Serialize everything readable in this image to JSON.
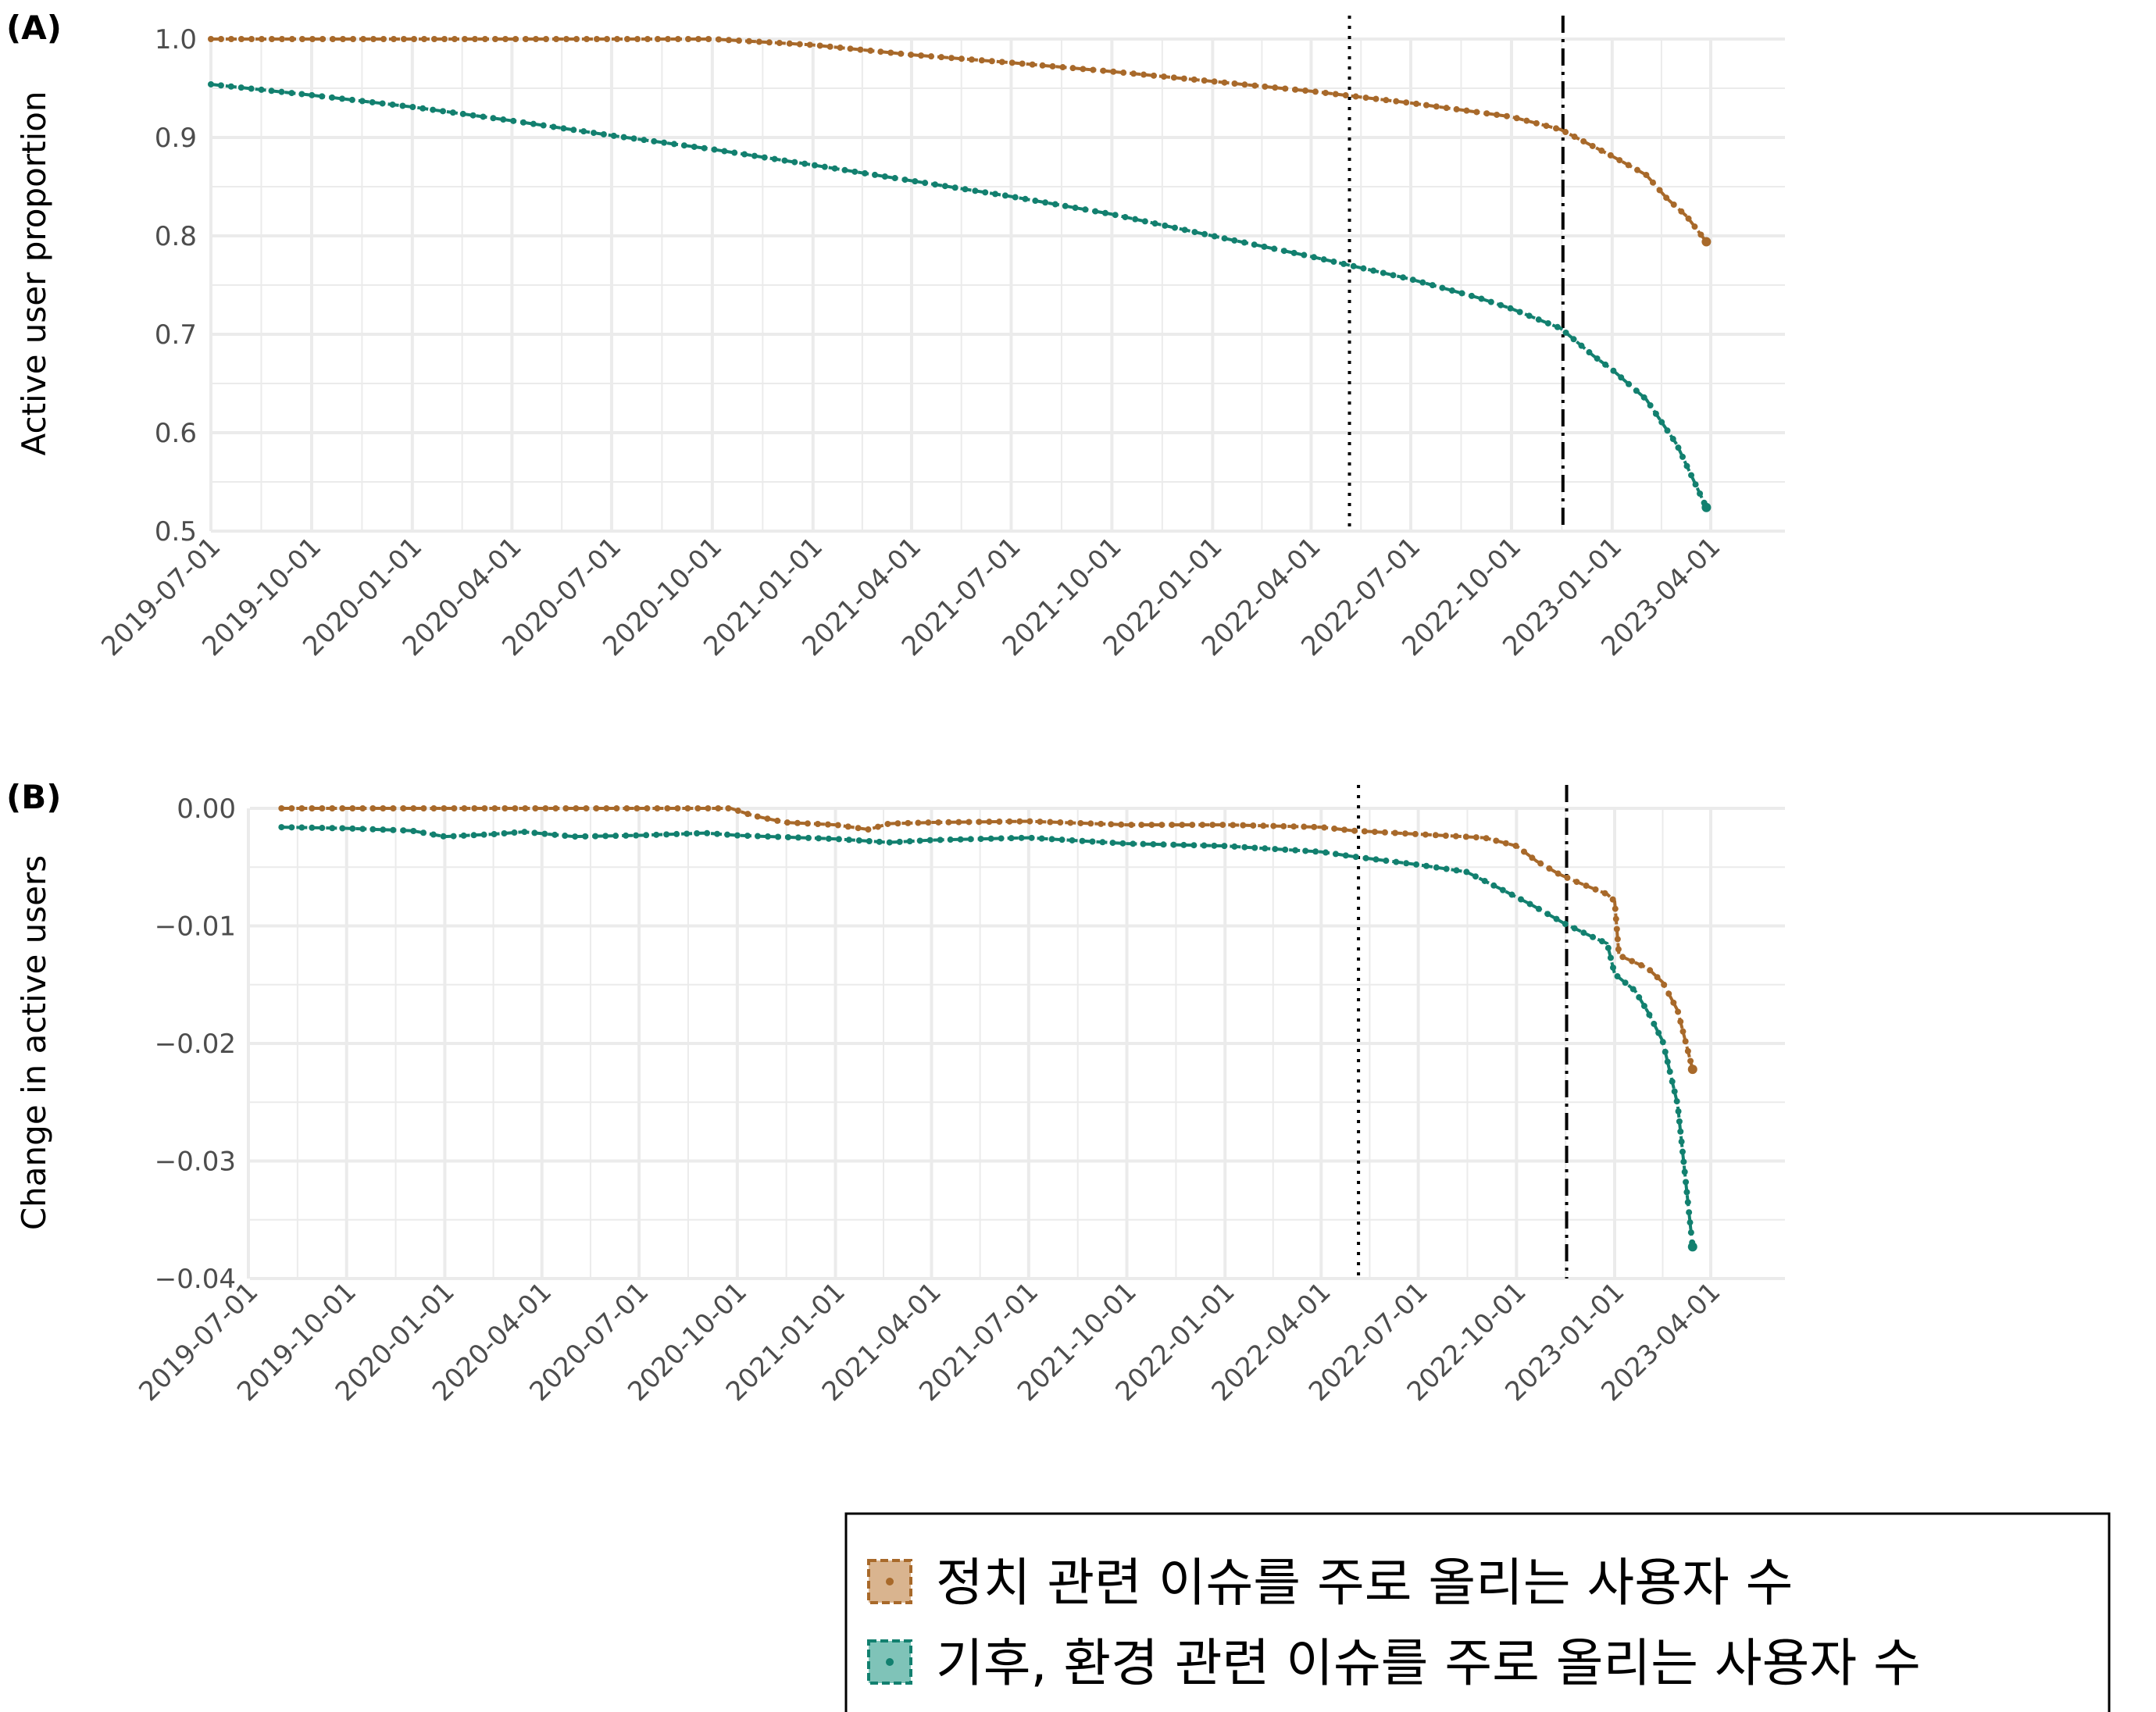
{
  "colors": {
    "political": "#A8692A",
    "climate": "#12806F",
    "grid": "#EBEBEB",
    "reference_line": "#000000"
  },
  "legend": {
    "items": [
      {
        "key": "political",
        "label": "정치 관련 이슈를 주로 올리는 사용자 수"
      },
      {
        "key": "climate",
        "label": "기후, 환경 관련 이슈를 주로 올리는 사용자 수"
      }
    ]
  },
  "chart_data": [
    {
      "type": "line",
      "panel_label": "(A)",
      "ylabel": "Active user proportion",
      "xlabel": "",
      "x_range": [
        "2019-07-01",
        "2023-04-01"
      ],
      "ylim": [
        0.5,
        1.0
      ],
      "y_ticks": [
        0.5,
        0.6,
        0.7,
        0.8,
        0.9,
        1.0
      ],
      "y_tick_labels": [
        "0.5",
        "0.6",
        "0.7",
        "0.8",
        "0.9",
        "1.0"
      ],
      "x_ticks": [
        "2019-07-01",
        "2019-10-01",
        "2020-01-01",
        "2020-04-01",
        "2020-07-01",
        "2020-10-01",
        "2021-01-01",
        "2021-04-01",
        "2021-07-01",
        "2021-10-01",
        "2022-01-01",
        "2022-04-01",
        "2022-07-01",
        "2022-10-01",
        "2023-01-01",
        "2023-04-01"
      ],
      "vlines": [
        {
          "x": "2022-05-06",
          "style": "dotted"
        },
        {
          "x": "2022-11-17",
          "style": "dashdot"
        }
      ],
      "grid": true,
      "series": [
        {
          "key": "political",
          "points": [
            [
              "2019-07-01",
              1.0
            ],
            [
              "2020-01-01",
              1.0
            ],
            [
              "2020-07-01",
              1.0
            ],
            [
              "2020-10-01",
              1.0
            ],
            [
              "2021-01-01",
              0.994
            ],
            [
              "2021-04-01",
              0.984
            ],
            [
              "2021-07-01",
              0.976
            ],
            [
              "2021-10-01",
              0.967
            ],
            [
              "2022-01-01",
              0.957
            ],
            [
              "2022-04-01",
              0.947
            ],
            [
              "2022-07-01",
              0.935
            ],
            [
              "2022-10-01",
              0.921
            ],
            [
              "2022-11-15",
              0.908
            ],
            [
              "2023-01-01",
              0.881
            ],
            [
              "2023-02-01",
              0.862
            ],
            [
              "2023-02-20",
              0.838
            ],
            [
              "2023-03-10",
              0.82
            ],
            [
              "2023-03-28",
              0.794
            ]
          ]
        },
        {
          "key": "climate",
          "points": [
            [
              "2019-07-01",
              0.954
            ],
            [
              "2019-10-01",
              0.943
            ],
            [
              "2020-01-01",
              0.931
            ],
            [
              "2020-04-01",
              0.917
            ],
            [
              "2020-07-01",
              0.902
            ],
            [
              "2020-10-01",
              0.888
            ],
            [
              "2021-01-01",
              0.872
            ],
            [
              "2021-04-01",
              0.856
            ],
            [
              "2021-07-01",
              0.84
            ],
            [
              "2021-10-01",
              0.822
            ],
            [
              "2022-01-01",
              0.8
            ],
            [
              "2022-04-01",
              0.779
            ],
            [
              "2022-07-01",
              0.756
            ],
            [
              "2022-09-01",
              0.737
            ],
            [
              "2022-10-01",
              0.726
            ],
            [
              "2022-11-15",
              0.706
            ],
            [
              "2022-12-15",
              0.678
            ],
            [
              "2023-01-01",
              0.664
            ],
            [
              "2023-02-01",
              0.634
            ],
            [
              "2023-03-01",
              0.588
            ],
            [
              "2023-03-28",
              0.524
            ]
          ]
        }
      ]
    },
    {
      "type": "line",
      "panel_label": "(B)",
      "ylabel": "Change in active users",
      "xlabel": "",
      "x_range": [
        "2019-06-05",
        "2023-04-01"
      ],
      "ylim": [
        -0.04,
        0.0
      ],
      "y_ticks": [
        -0.04,
        -0.03,
        -0.02,
        -0.01,
        0.0
      ],
      "y_tick_labels": [
        "−0.04",
        "−0.03",
        "−0.02",
        "−0.01",
        "0.00"
      ],
      "x_ticks": [
        "2019-07-01",
        "2019-10-01",
        "2020-01-01",
        "2020-04-01",
        "2020-07-01",
        "2020-10-01",
        "2021-01-01",
        "2021-04-01",
        "2021-07-01",
        "2021-10-01",
        "2022-01-01",
        "2022-04-01",
        "2022-07-01",
        "2022-10-01",
        "2023-01-01",
        "2023-04-01"
      ],
      "vlines": [
        {
          "x": "2022-05-06",
          "style": "dotted"
        },
        {
          "x": "2022-11-17",
          "style": "dashdot"
        }
      ],
      "grid": true,
      "series": [
        {
          "key": "political",
          "points": [
            [
              "2019-08-01",
              0.0
            ],
            [
              "2020-04-01",
              0.0
            ],
            [
              "2020-09-25",
              0.0
            ],
            [
              "2020-10-15",
              -0.0006
            ],
            [
              "2020-11-15",
              -0.0012
            ],
            [
              "2021-01-01",
              -0.0014
            ],
            [
              "2021-02-01",
              -0.0018
            ],
            [
              "2021-02-20",
              -0.0013
            ],
            [
              "2021-04-01",
              -0.0012
            ],
            [
              "2021-07-01",
              -0.0011
            ],
            [
              "2021-10-01",
              -0.0014
            ],
            [
              "2022-01-01",
              -0.0014
            ],
            [
              "2022-04-01",
              -0.0016
            ],
            [
              "2022-05-01",
              -0.0019
            ],
            [
              "2022-07-01",
              -0.0022
            ],
            [
              "2022-09-01",
              -0.0025
            ],
            [
              "2022-10-01",
              -0.0032
            ],
            [
              "2022-10-20",
              -0.0045
            ],
            [
              "2022-11-10",
              -0.0056
            ],
            [
              "2022-11-25",
              -0.0062
            ],
            [
              "2022-12-25",
              -0.0073
            ],
            [
              "2023-01-01",
              -0.0079
            ],
            [
              "2023-01-05",
              -0.0125
            ],
            [
              "2023-02-01",
              -0.0136
            ],
            [
              "2023-02-15",
              -0.0148
            ],
            [
              "2023-03-01",
              -0.0172
            ],
            [
              "2023-03-15",
              -0.0222
            ]
          ]
        },
        {
          "key": "climate",
          "points": [
            [
              "2019-08-01",
              -0.0016
            ],
            [
              "2019-10-01",
              -0.0017
            ],
            [
              "2019-12-01",
              -0.0019
            ],
            [
              "2020-01-01",
              -0.0024
            ],
            [
              "2020-02-15",
              -0.0022
            ],
            [
              "2020-03-15",
              -0.002
            ],
            [
              "2020-05-01",
              -0.0024
            ],
            [
              "2020-07-01",
              -0.0023
            ],
            [
              "2020-09-01",
              -0.0021
            ],
            [
              "2020-10-01",
              -0.0023
            ],
            [
              "2021-01-01",
              -0.0026
            ],
            [
              "2021-02-20",
              -0.0029
            ],
            [
              "2021-04-01",
              -0.0027
            ],
            [
              "2021-07-01",
              -0.0025
            ],
            [
              "2021-10-01",
              -0.003
            ],
            [
              "2022-01-01",
              -0.0032
            ],
            [
              "2022-04-01",
              -0.0037
            ],
            [
              "2022-05-01",
              -0.0041
            ],
            [
              "2022-07-01",
              -0.0048
            ],
            [
              "2022-08-15",
              -0.0054
            ],
            [
              "2022-09-15",
              -0.0068
            ],
            [
              "2022-10-15",
              -0.0082
            ],
            [
              "2022-11-15",
              -0.0098
            ],
            [
              "2022-12-15",
              -0.0111
            ],
            [
              "2022-12-25",
              -0.0115
            ],
            [
              "2023-01-01",
              -0.0141
            ],
            [
              "2023-01-20",
              -0.0155
            ],
            [
              "2023-02-01",
              -0.0173
            ],
            [
              "2023-02-15",
              -0.0198
            ],
            [
              "2023-03-01",
              -0.0252
            ],
            [
              "2023-03-15",
              -0.0373
            ]
          ]
        }
      ]
    }
  ]
}
